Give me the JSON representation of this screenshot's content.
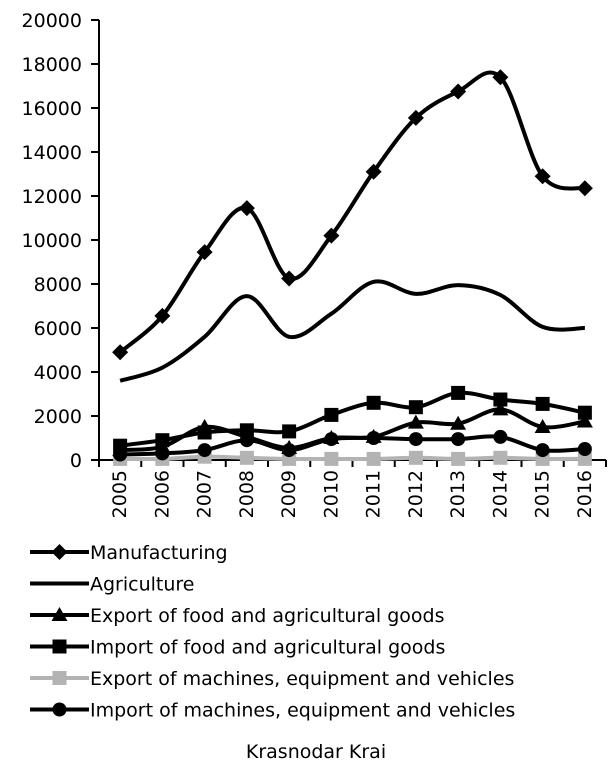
{
  "chart_data": {
    "type": "line",
    "title": "",
    "caption": "Krasnodar Krai",
    "xlabel": "",
    "ylabel": "",
    "ylim": [
      0,
      20000
    ],
    "y_ticks": [
      0,
      2000,
      4000,
      6000,
      8000,
      10000,
      12000,
      14000,
      16000,
      18000,
      20000
    ],
    "x": [
      "2005",
      "2006",
      "2007",
      "2008",
      "2009",
      "2010",
      "2011",
      "2012",
      "2013",
      "2014",
      "2015",
      "2016"
    ],
    "grid": false,
    "legend_position": "bottom",
    "series": [
      {
        "name": "Manufacturing",
        "color": "#000000",
        "marker": "diamond",
        "smooth": true,
        "values": [
          4900,
          6550,
          9450,
          11450,
          8250,
          10200,
          13100,
          15550,
          16750,
          17400,
          12900,
          12350
        ]
      },
      {
        "name": "Agriculture",
        "color": "#000000",
        "marker": "none",
        "smooth": true,
        "values": [
          3600,
          4200,
          5600,
          7450,
          5600,
          6650,
          8100,
          7550,
          7950,
          7500,
          6050,
          6000
        ]
      },
      {
        "name": "Export of food and agricultural goods",
        "color": "#000000",
        "marker": "triangle",
        "smooth": true,
        "values": [
          450,
          600,
          1500,
          1050,
          550,
          1000,
          1050,
          1700,
          1650,
          2300,
          1500,
          1750
        ]
      },
      {
        "name": "Import of food and agricultural goods",
        "color": "#000000",
        "marker": "square",
        "smooth": true,
        "values": [
          650,
          900,
          1250,
          1350,
          1300,
          2050,
          2600,
          2400,
          3050,
          2750,
          2550,
          2150
        ]
      },
      {
        "name": "Export of machines, equipment and  vehicles",
        "color": "#b3b3b3",
        "marker": "square",
        "smooth": true,
        "values": [
          50,
          50,
          150,
          100,
          50,
          50,
          50,
          100,
          50,
          100,
          50,
          50
        ]
      },
      {
        "name": "Import of machines, equipment and  vehicles",
        "color": "#000000",
        "marker": "circle",
        "smooth": true,
        "values": [
          250,
          300,
          450,
          900,
          450,
          950,
          1000,
          950,
          950,
          1050,
          450,
          500
        ]
      }
    ]
  }
}
